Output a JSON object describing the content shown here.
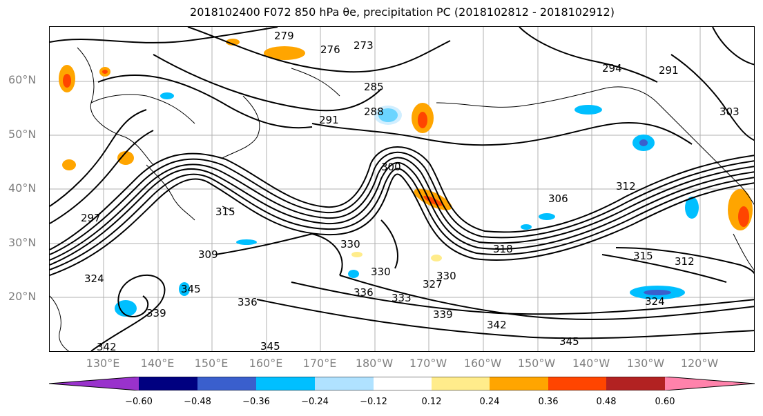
{
  "title": "2018102400 F072 850 hPa θe, precipitation PC (2018102812 - 2018102912)",
  "map": {
    "projection": "equirectangular",
    "extent": {
      "lon_min": 120,
      "lon_max": 250,
      "lat_min": 10,
      "lat_max": 70
    },
    "gridlines": true,
    "lat_labels": [
      "60°N",
      "50°N",
      "40°N",
      "30°N",
      "20°N"
    ],
    "lon_labels": [
      "130°E",
      "140°E",
      "150°E",
      "160°E",
      "170°E",
      "180°W",
      "170°W",
      "160°W",
      "150°W",
      "140°W",
      "130°W",
      "120°W"
    ],
    "contour_labels": [
      "279",
      "276",
      "273",
      "285",
      "291",
      "288",
      "294",
      "291",
      "300",
      "306",
      "312",
      "303",
      "297",
      "315",
      "312",
      "330",
      "330",
      "327",
      "330",
      "333",
      "336",
      "339",
      "342",
      "345",
      "345",
      "342",
      "339",
      "336",
      "345",
      "324",
      "324",
      "318",
      "315",
      "309"
    ]
  },
  "colorbar": {
    "ticks": [
      "−0.60",
      "−0.48",
      "−0.36",
      "−0.24",
      "−0.12",
      "0.12",
      "0.24",
      "0.36",
      "0.48",
      "0.60"
    ],
    "colors": [
      "#9932cc",
      "#000080",
      "#3a5fcd",
      "#00bfff",
      "#b0e2ff",
      "#ffffff",
      "#ffec8b",
      "#ffa500",
      "#ff4500",
      "#b22222",
      "#ff82ab"
    ],
    "extend": "both"
  }
}
